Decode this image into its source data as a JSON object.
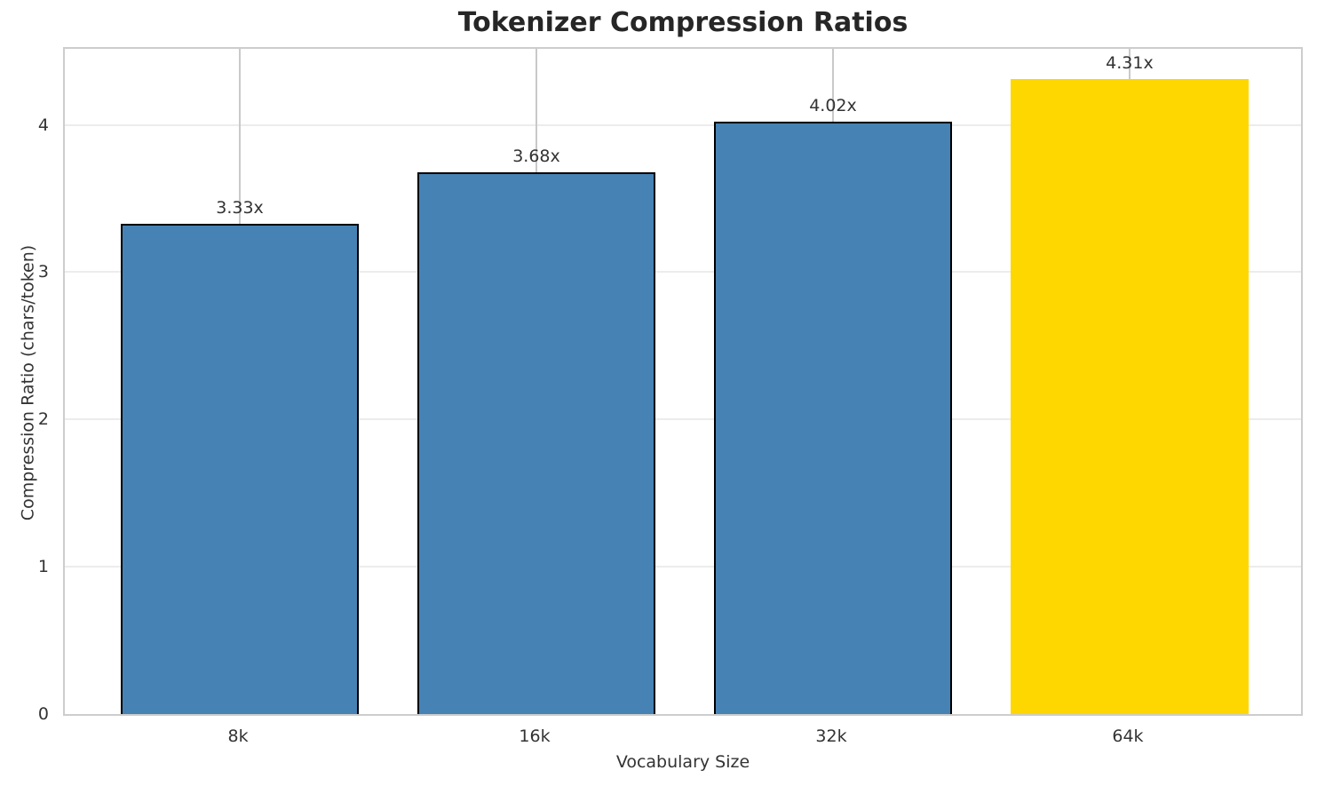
{
  "chart_data": {
    "type": "bar",
    "title": "Tokenizer Compression Ratios",
    "xlabel": "Vocabulary Size",
    "ylabel": "Compression Ratio (chars/token)",
    "categories": [
      "8k",
      "16k",
      "32k",
      "64k"
    ],
    "values": [
      3.33,
      3.68,
      4.02,
      4.31
    ],
    "bar_labels": [
      "3.33x",
      "3.68x",
      "4.02x",
      "4.31x"
    ],
    "yticks": [
      0,
      1,
      2,
      3,
      4
    ],
    "ylim": [
      0,
      4.54
    ],
    "xlim_units": [
      -0.59,
      3.59
    ],
    "bar_width_units": 0.8,
    "grid": true,
    "legend": false,
    "colors": {
      "bar_default": "#4682B4",
      "bar_highlight": "#FFD700",
      "highlight_index": 3,
      "bar_edge": "#000000",
      "grid_horizontal": "#ececec",
      "grid_vertical": "#c9c9c9",
      "spine": "#cdcdcd",
      "title_text": "#262626",
      "tick_text": "#333333",
      "figure_background": "#ffffff"
    }
  }
}
